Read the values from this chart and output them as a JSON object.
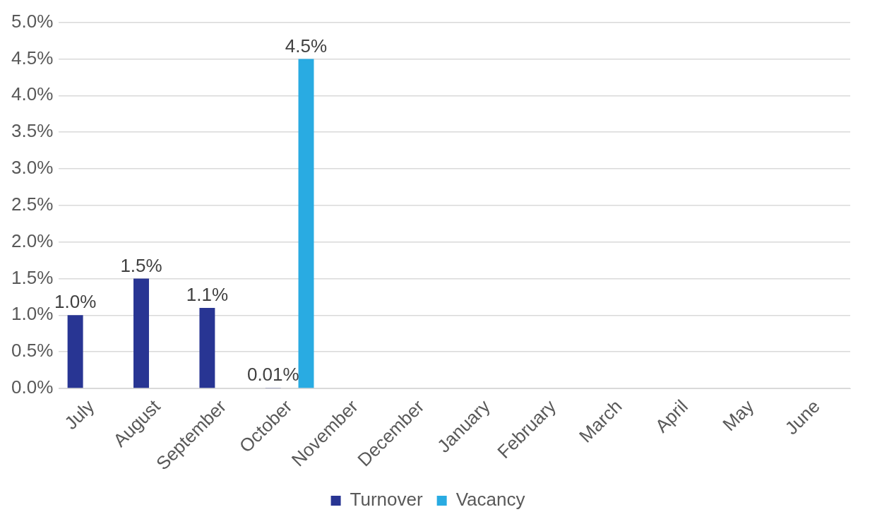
{
  "chart_data": {
    "type": "bar",
    "categories": [
      "July",
      "August",
      "September",
      "October",
      "November",
      "December",
      "January",
      "February",
      "March",
      "April",
      "May",
      "June"
    ],
    "series": [
      {
        "name": "Turnover",
        "color": "#283593",
        "values": [
          1.0,
          1.5,
          1.1,
          0.01,
          null,
          null,
          null,
          null,
          null,
          null,
          null,
          null
        ],
        "value_labels": [
          "1.0%",
          "1.5%",
          "1.1%",
          "0.01%",
          null,
          null,
          null,
          null,
          null,
          null,
          null,
          null
        ]
      },
      {
        "name": "Vacancy",
        "color": "#29abe2",
        "values": [
          null,
          null,
          null,
          4.5,
          null,
          null,
          null,
          null,
          null,
          null,
          null,
          null
        ],
        "value_labels": [
          null,
          null,
          null,
          "4.5%",
          null,
          null,
          null,
          null,
          null,
          null,
          null,
          null
        ]
      }
    ],
    "ylim": [
      0,
      5
    ],
    "yticks": [
      {
        "value": 0,
        "label": "0.0%"
      },
      {
        "value": 0.5,
        "label": "0.5%"
      },
      {
        "value": 1,
        "label": "1.0%"
      },
      {
        "value": 1.5,
        "label": "1.5%"
      },
      {
        "value": 2,
        "label": "2.0%"
      },
      {
        "value": 2.5,
        "label": "2.5%"
      },
      {
        "value": 3,
        "label": "3.0%"
      },
      {
        "value": 3.5,
        "label": "3.5%"
      },
      {
        "value": 4,
        "label": "4.0%"
      },
      {
        "value": 4.5,
        "label": "4.5%"
      },
      {
        "value": 5,
        "label": "5.0%"
      }
    ],
    "grid": "y",
    "legend": "bottom"
  }
}
